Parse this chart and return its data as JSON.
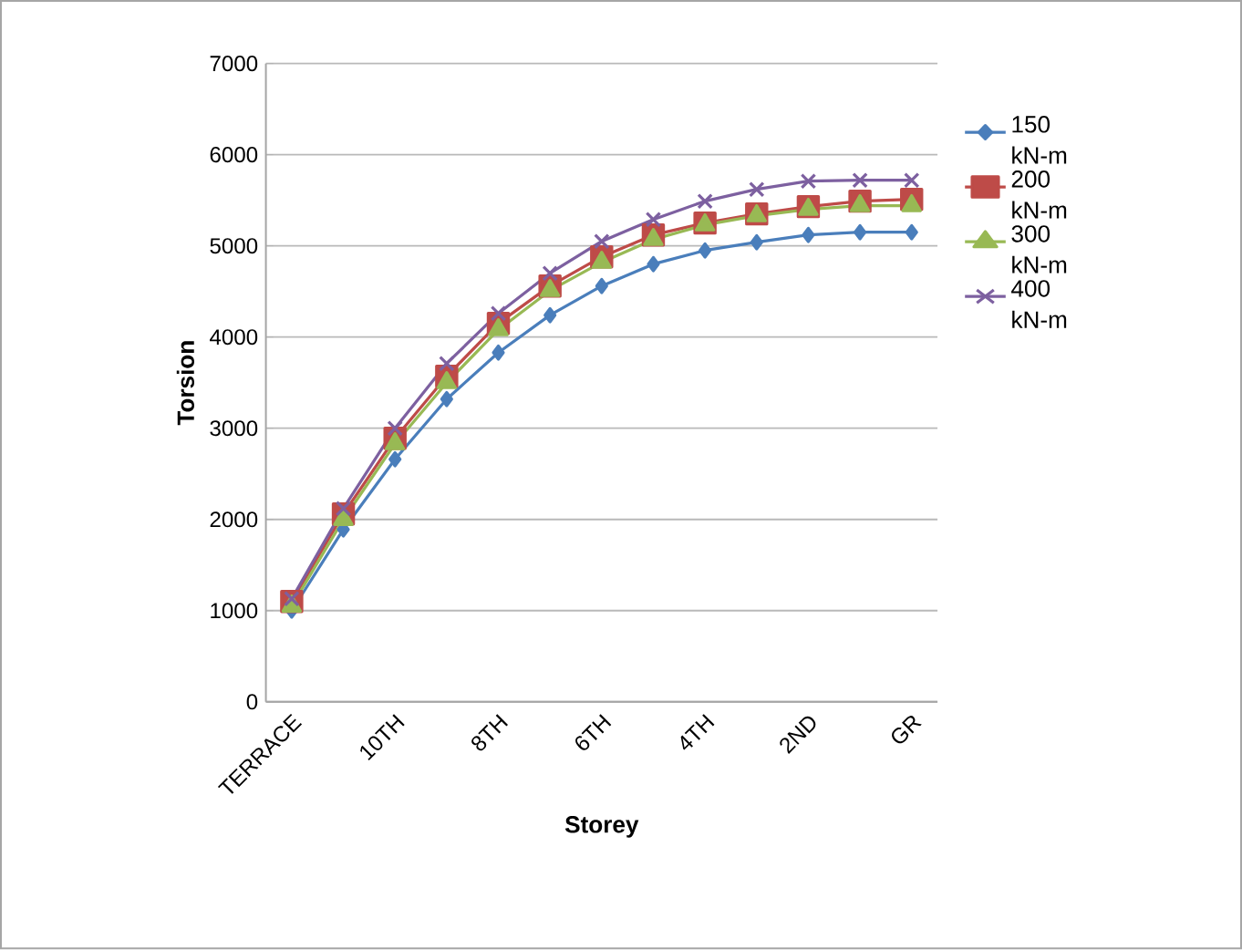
{
  "chart_data": {
    "type": "line",
    "xlabel": "Storey",
    "ylabel": "Torsion",
    "categories": [
      "TERRACE",
      null,
      "10TH",
      null,
      "8TH",
      null,
      "6TH",
      null,
      "4TH",
      null,
      "2ND",
      null,
      "GR"
    ],
    "series": [
      {
        "name": "150 kN-m",
        "color": "#4a7ebb",
        "marker": "diamond",
        "values": [
          1000,
          1890,
          2660,
          3320,
          3830,
          4240,
          4560,
          4800,
          4950,
          5040,
          5120,
          5150,
          5150
        ]
      },
      {
        "name": "200 kN-m",
        "color": "#be4b48",
        "marker": "square",
        "values": [
          1100,
          2060,
          2890,
          3570,
          4150,
          4560,
          4880,
          5120,
          5250,
          5350,
          5430,
          5490,
          5510
        ]
      },
      {
        "name": "300 kN-m",
        "color": "#98b954",
        "marker": "triangle",
        "values": [
          1050,
          2000,
          2830,
          3500,
          4080,
          4510,
          4820,
          5070,
          5230,
          5330,
          5400,
          5440,
          5440
        ]
      },
      {
        "name": "400 kN-m",
        "color": "#7d60a0",
        "marker": "cross",
        "values": [
          1130,
          2120,
          3000,
          3710,
          4260,
          4700,
          5050,
          5290,
          5490,
          5620,
          5710,
          5720,
          5720
        ]
      }
    ],
    "ylim": [
      0,
      7000
    ],
    "yticks": [
      0,
      1000,
      2000,
      3000,
      4000,
      5000,
      6000,
      7000
    ],
    "grid": "y",
    "legend": "right",
    "line_style": "solid"
  }
}
